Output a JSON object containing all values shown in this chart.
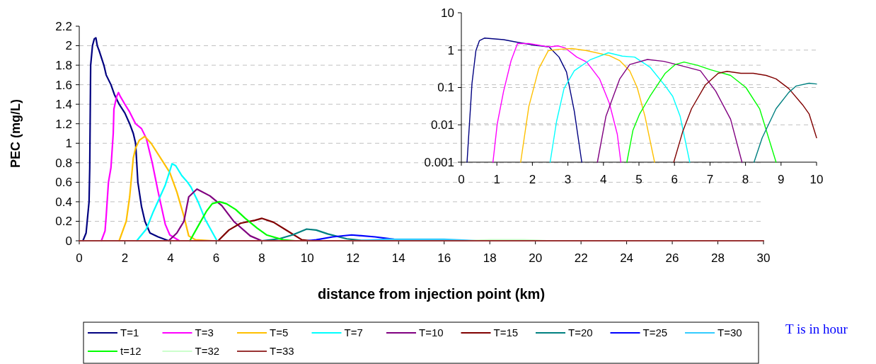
{
  "chart_data": [
    {
      "type": "line",
      "xlabel": "distance from injection point (km)",
      "ylabel": "PEC (mg/L)",
      "xlim": [
        0,
        30
      ],
      "xticks": [
        0,
        2,
        4,
        6,
        8,
        10,
        12,
        14,
        16,
        18,
        20,
        22,
        24,
        26,
        28,
        30
      ],
      "ylim": [
        0,
        2.2
      ],
      "yticks": [
        0,
        0.2,
        0.4,
        0.6,
        0.8,
        1,
        1.2,
        1.4,
        1.6,
        1.8,
        2,
        2.2
      ],
      "grid": "y",
      "legend": "bottom",
      "annotations": [
        "T is in hour"
      ],
      "series": [
        {
          "name": "T=1",
          "color": "#000080",
          "x": [
            0.16,
            0.3,
            0.43,
            0.46,
            0.5,
            0.58,
            0.66,
            0.73,
            0.79,
            0.87,
            1.08,
            1.18,
            1.39,
            1.54,
            1.75,
            2,
            2.21,
            2.37,
            2.47,
            2.57,
            2.73,
            2.88,
            3.1,
            3.46,
            3.92
          ],
          "values": [
            0,
            0.08,
            0.4,
            0.75,
            1.8,
            2,
            2.07,
            2.08,
            2,
            1.95,
            1.8,
            1.7,
            1.6,
            1.5,
            1.4,
            1.31,
            1.2,
            1.1,
            1,
            0.6,
            0.35,
            0.2,
            0.08,
            0.04,
            0
          ]
        },
        {
          "name": "T=3",
          "color": "#ff00ff",
          "x": [
            0.97,
            1.13,
            1.18,
            1.28,
            1.39,
            1.49,
            1.52,
            1.64,
            1.72,
            1.8,
            2,
            2.21,
            2.47,
            2.73,
            2.94,
            3.2,
            3.46,
            3.77,
            3.97,
            4.39
          ],
          "values": [
            0,
            0.1,
            0.25,
            0.6,
            0.75,
            1.1,
            1.35,
            1.48,
            1.52,
            1.48,
            1.4,
            1.32,
            1.2,
            1.15,
            1.05,
            0.8,
            0.5,
            0.17,
            0.06,
            0
          ]
        },
        {
          "name": "T=5",
          "color": "#ffc000",
          "x": [
            1.75,
            2.06,
            2.21,
            2.37,
            2.47,
            2.63,
            2.87,
            3.15,
            3.56,
            3.97,
            4.28,
            4.59,
            4.8,
            5.1,
            5.84
          ],
          "values": [
            0,
            0.2,
            0.45,
            0.85,
            0.95,
            1.03,
            1.07,
            1,
            0.85,
            0.7,
            0.5,
            0.25,
            0.05,
            0.01,
            0
          ]
        },
        {
          "name": "T=7",
          "color": "#00ffff",
          "x": [
            2.52,
            2.94,
            3.25,
            3.77,
            4.07,
            4.23,
            4.49,
            4.75,
            4.9,
            5.21,
            5.52,
            6.04
          ],
          "values": [
            0,
            0.12,
            0.3,
            0.57,
            0.79,
            0.77,
            0.67,
            0.6,
            0.55,
            0.4,
            0.22,
            0
          ]
        },
        {
          "name": "T=10",
          "color": "#800080",
          "x": [
            3.92,
            4.28,
            4.59,
            4.8,
            5.16,
            5.73,
            6.25,
            6.77,
            7.5,
            8
          ],
          "values": [
            0,
            0.08,
            0.2,
            0.45,
            0.53,
            0.46,
            0.36,
            0.2,
            0.05,
            0
          ]
        },
        {
          "name": "T=15",
          "color": "#800000",
          "x": [
            6.09,
            6.56,
            7.07,
            7.7,
            8,
            8.52,
            9.14,
            9.76,
            10.17
          ],
          "values": [
            0,
            0.11,
            0.18,
            0.21,
            0.23,
            0.19,
            0.1,
            0.01,
            0
          ]
        },
        {
          "name": "T=20",
          "color": "#008080",
          "x": [
            8,
            8.76,
            9.35,
            9.97,
            10.39,
            10.9,
            11.73,
            12.35,
            13
          ],
          "values": [
            0,
            0.02,
            0.06,
            0.12,
            0.11,
            0.07,
            0.02,
            0.005,
            0
          ]
        },
        {
          "name": "T=25",
          "color": "#0000ff",
          "x": [
            9.97,
            10.39,
            11.11,
            11.94,
            12.97,
            13.8,
            15
          ],
          "values": [
            0,
            0.01,
            0.04,
            0.06,
            0.04,
            0.015,
            0
          ]
        },
        {
          "name": "T=30",
          "color": "#33ccff",
          "x": [
            12,
            13.5,
            16,
            17.5
          ],
          "values": [
            0,
            0.015,
            0.015,
            0
          ]
        },
        {
          "name": "t=12",
          "color": "#00ff00",
          "x": [
            4.85,
            5.21,
            5.57,
            5.83,
            6.14,
            6.45,
            6.86,
            7.28,
            7.8,
            8.21,
            8.94,
            9.46
          ],
          "values": [
            0,
            0.15,
            0.3,
            0.38,
            0.4,
            0.38,
            0.32,
            0.23,
            0.13,
            0.06,
            0.01,
            0
          ]
        },
        {
          "name": "T=32",
          "color": "#ccffcc",
          "x": [
            17,
            18,
            19.5,
            20.5
          ],
          "values": [
            0,
            0.01,
            0.01,
            0
          ]
        },
        {
          "name": "T=33",
          "color": "#993333",
          "x": [
            0,
            30
          ],
          "values": [
            0,
            0
          ]
        }
      ]
    },
    {
      "type": "line",
      "log": "y",
      "xlim": [
        0,
        10
      ],
      "xticks": [
        0,
        1,
        2,
        3,
        4,
        5,
        6,
        7,
        8,
        9,
        10
      ],
      "ylim": [
        0.001,
        10
      ],
      "yticks": [
        0.001,
        0.01,
        0.1,
        1,
        10
      ],
      "grid": "y",
      "series": [
        {
          "color": "#000080",
          "x": [
            0.16,
            0.3,
            0.41,
            0.51,
            0.65,
            1.19,
            1.61,
            2.11,
            2.47,
            2.75,
            2.96,
            3.18,
            3.39
          ],
          "values": [
            0.001,
            0.13,
            0.97,
            1.8,
            2.1,
            1.9,
            1.6,
            1.33,
            1.22,
            0.65,
            0.26,
            0.023,
            0.001
          ]
        },
        {
          "color": "#ff00ff",
          "x": [
            0.89,
            1.01,
            1.19,
            1.4,
            1.58,
            1.9,
            2.47,
            2.72,
            2.93,
            3.25,
            3.53,
            3.89,
            4.17,
            4.39,
            4.49
          ],
          "values": [
            0.001,
            0.0105,
            0.08,
            0.52,
            1.5,
            1.5,
            1.22,
            1.3,
            1.13,
            0.65,
            0.48,
            0.17,
            0.037,
            0.0056,
            0.001
          ]
        },
        {
          "color": "#ffc000",
          "x": [
            1.67,
            1.9,
            2.18,
            2.45,
            2.75,
            3.11,
            3.53,
            4.17,
            4.46,
            4.74,
            4.95,
            5.17,
            5.44
          ],
          "values": [
            0.001,
            0.031,
            0.32,
            0.97,
            1.05,
            1.1,
            0.97,
            0.71,
            0.52,
            0.28,
            0.1,
            0.0168,
            0.001
          ]
        },
        {
          "color": "#00ffff",
          "x": [
            2.5,
            2.68,
            2.89,
            3.18,
            3.64,
            4.14,
            4.53,
            4.88,
            5.31,
            5.74,
            5.95,
            6.16,
            6.43
          ],
          "values": [
            0.001,
            0.0123,
            0.093,
            0.28,
            0.56,
            0.85,
            0.69,
            0.65,
            0.35,
            0.11,
            0.058,
            0.0168,
            0.001
          ]
        },
        {
          "color": "#800080",
          "x": [
            3.83,
            4.07,
            4.46,
            4.74,
            5.24,
            5.7,
            6.16,
            6.73,
            7.16,
            7.58,
            7.9
          ],
          "values": [
            0.001,
            0.0168,
            0.17,
            0.41,
            0.56,
            0.5,
            0.39,
            0.28,
            0.08,
            0.0141,
            0.001
          ]
        },
        {
          "color": "#00ff00",
          "x": [
            4.66,
            4.83,
            5.02,
            5.31,
            5.74,
            6.02,
            6.27,
            6.66,
            7.01,
            7.58,
            8.01,
            8.4,
            8.86
          ],
          "values": [
            0.001,
            0.0071,
            0.0196,
            0.058,
            0.24,
            0.41,
            0.48,
            0.39,
            0.3,
            0.21,
            0.1,
            0.0265,
            0.001
          ]
        },
        {
          "color": "#800000",
          "x": [
            5.98,
            6.23,
            6.48,
            6.87,
            7.23,
            7.48,
            7.87,
            8.22,
            8.58,
            8.86,
            9.22,
            9.61,
            9.79,
            10
          ],
          "values": [
            0.001,
            0.0065,
            0.027,
            0.117,
            0.24,
            0.27,
            0.24,
            0.24,
            0.21,
            0.17,
            0.093,
            0.034,
            0.0196,
            0.0045
          ]
        },
        {
          "color": "#008080",
          "x": [
            8.24,
            8.47,
            8.86,
            9.22,
            9.43,
            9.79,
            10
          ],
          "values": [
            0.001,
            0.0045,
            0.027,
            0.074,
            0.11,
            0.13,
            0.124
          ]
        }
      ]
    }
  ]
}
